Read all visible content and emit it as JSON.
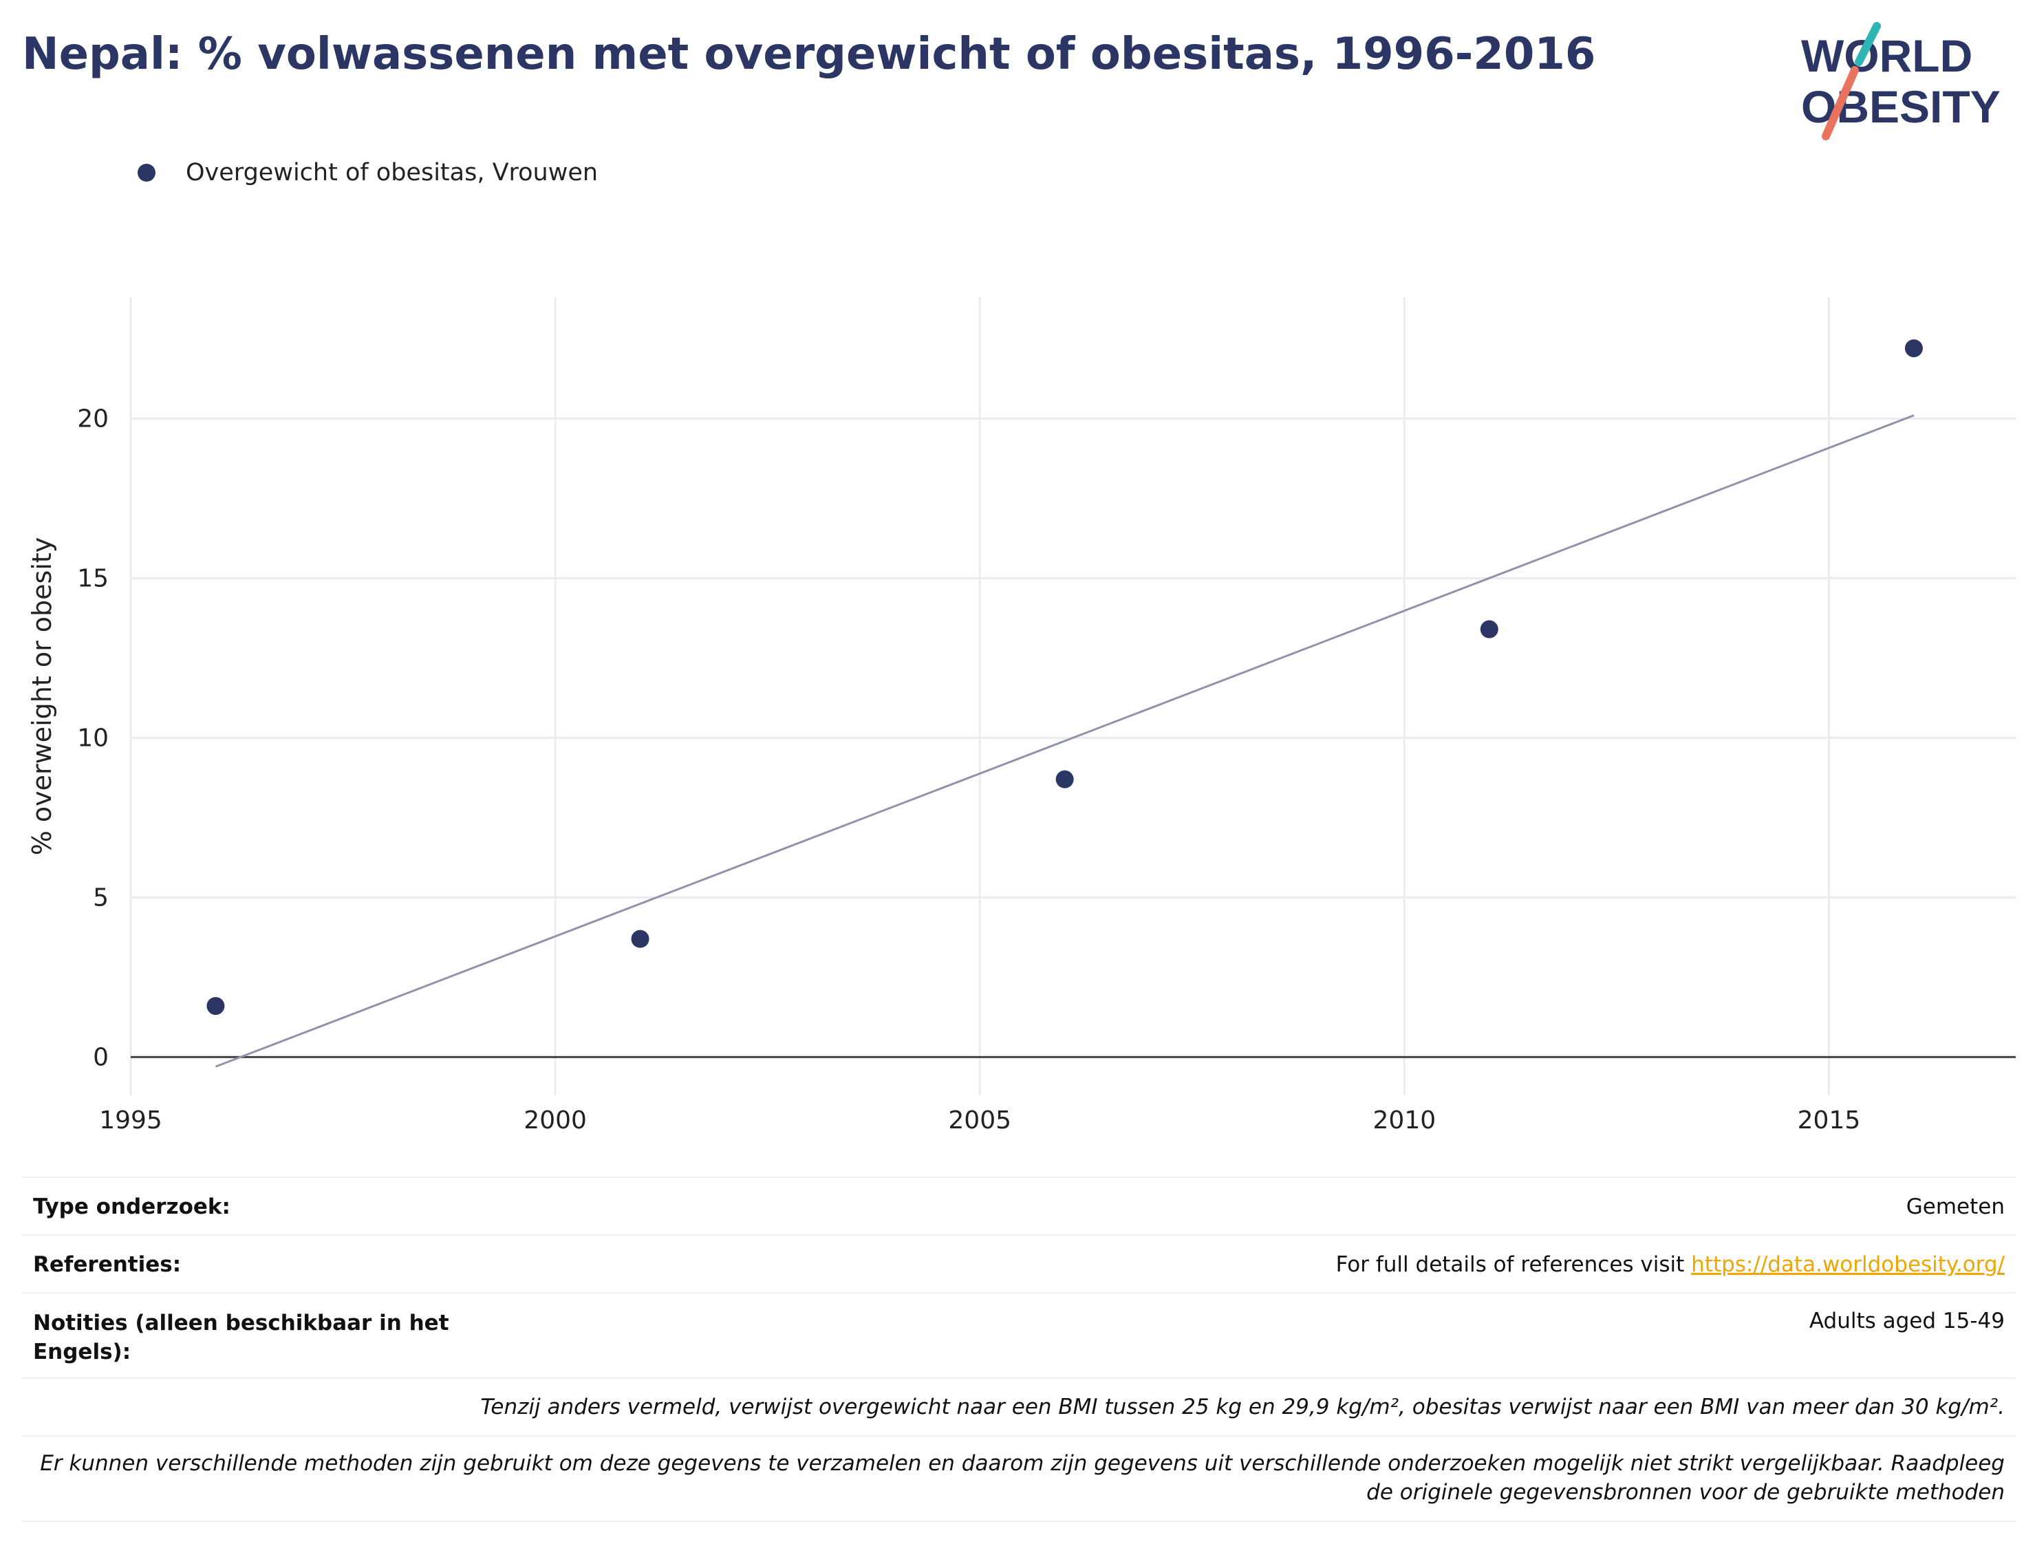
{
  "title": "Nepal: % volwassenen met overgewicht of obesitas, 1996-2016",
  "logo": {
    "line1": "WORLD",
    "line2": "OBESITY",
    "colors": {
      "navy": "#2b3664",
      "teal": "#2fb5b4",
      "coral": "#e8735e"
    }
  },
  "legend": {
    "label": "Overgewicht of obesitas, Vrouwen",
    "color": "#2b3664"
  },
  "chart_data": {
    "type": "scatter",
    "title": "Nepal: % volwassenen met overgewicht of obesitas, 1996-2016",
    "xlabel": "",
    "ylabel": "% overweight or obesity",
    "xlim": [
      1995,
      2017.2
    ],
    "ylim": [
      -1.2,
      23.8
    ],
    "x_ticks": [
      1995,
      2000,
      2005,
      2010,
      2015
    ],
    "y_ticks": [
      0,
      5,
      10,
      15,
      20
    ],
    "grid": true,
    "legend_position": "top-left",
    "series": [
      {
        "name": "Overgewicht of obesitas, Vrouwen",
        "color": "#2b3664",
        "x": [
          1996,
          2001,
          2006,
          2011,
          2016
        ],
        "y": [
          1.6,
          3.7,
          8.7,
          13.4,
          22.2
        ]
      }
    ],
    "trendline": {
      "color": "#8f93ab",
      "x": [
        1996,
        2016
      ],
      "y": [
        -0.3,
        20.1
      ]
    }
  },
  "info": {
    "type_label": "Type onderzoek:",
    "type_value": "Gemeten",
    "ref_label": "Referenties:",
    "ref_text": "For full details of references visit ",
    "ref_link": "https://data.worldobesity.org/",
    "notes_label_line1": "Notities (alleen beschikbaar in het",
    "notes_label_line2": "Engels):",
    "notes_value": "Adults aged 15-49",
    "bmi_note": "Tenzij anders vermeld, verwijst overgewicht naar een BMI tussen 25 kg en 29,9 kg/m², obesitas verwijst naar een BMI van meer dan 30 kg/m².",
    "method_note_line1": "Er kunnen verschillende methoden zijn gebruikt om deze gegevens te verzamelen en daarom zijn gegevens uit verschillende onderzoeken mogelijk niet strikt vergelijkbaar. Raadpleeg",
    "method_note_line2": "de originele gegevensbronnen voor de gebruikte methoden"
  }
}
